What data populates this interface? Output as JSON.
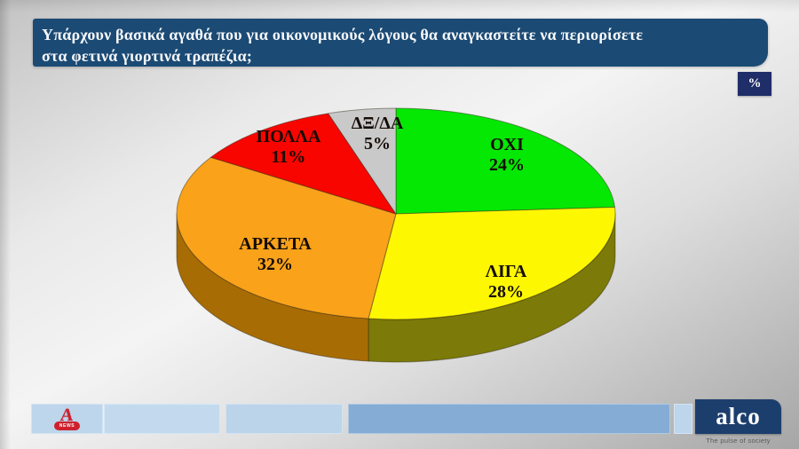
{
  "header": {
    "title": "Υπάρχουν βασικά αγαθά που για οικονομικούς λόγους  θα αναγκαστείτε να περιορίσετε\nστα φετινά γιορτινά τραπέζια;",
    "unit_badge": "%"
  },
  "chart_data": {
    "type": "pie",
    "style": "3d",
    "title": "Υπάρχουν βασικά αγαθά που για οικονομικούς λόγους θα αναγκαστείτε να περιορίσετε στα φετινά γιορτινά τραπέζια;",
    "unit": "%",
    "start_angle_deg": -90,
    "direction": "clockwise",
    "legend": false,
    "slices": [
      {
        "label": "ΟΧΙ",
        "value": 24,
        "color": "#04e804",
        "side_color": "#0a8a0a"
      },
      {
        "label": "ΛΙΓΑ",
        "value": 28,
        "color": "#fdf702",
        "side_color": "#7c7a08"
      },
      {
        "label": "ΑΡΚΕΤΑ",
        "value": 32,
        "color": "#f9a21a",
        "side_color": "#a86c04"
      },
      {
        "label": "ΠΟΛΛΑ",
        "value": 11,
        "color": "#f90500",
        "side_color": "#8f0502"
      },
      {
        "label": "ΔΞ/ΔΑ",
        "value": 5,
        "color": "#c9c9c9",
        "side_color": "#8f8f8f"
      }
    ],
    "label_text_color": "#150c05"
  },
  "footer": {
    "alpha_news_letter": "A",
    "alpha_news_caption": "NEWS",
    "alco_name": "alco",
    "alco_tagline": "The pulse of society"
  }
}
